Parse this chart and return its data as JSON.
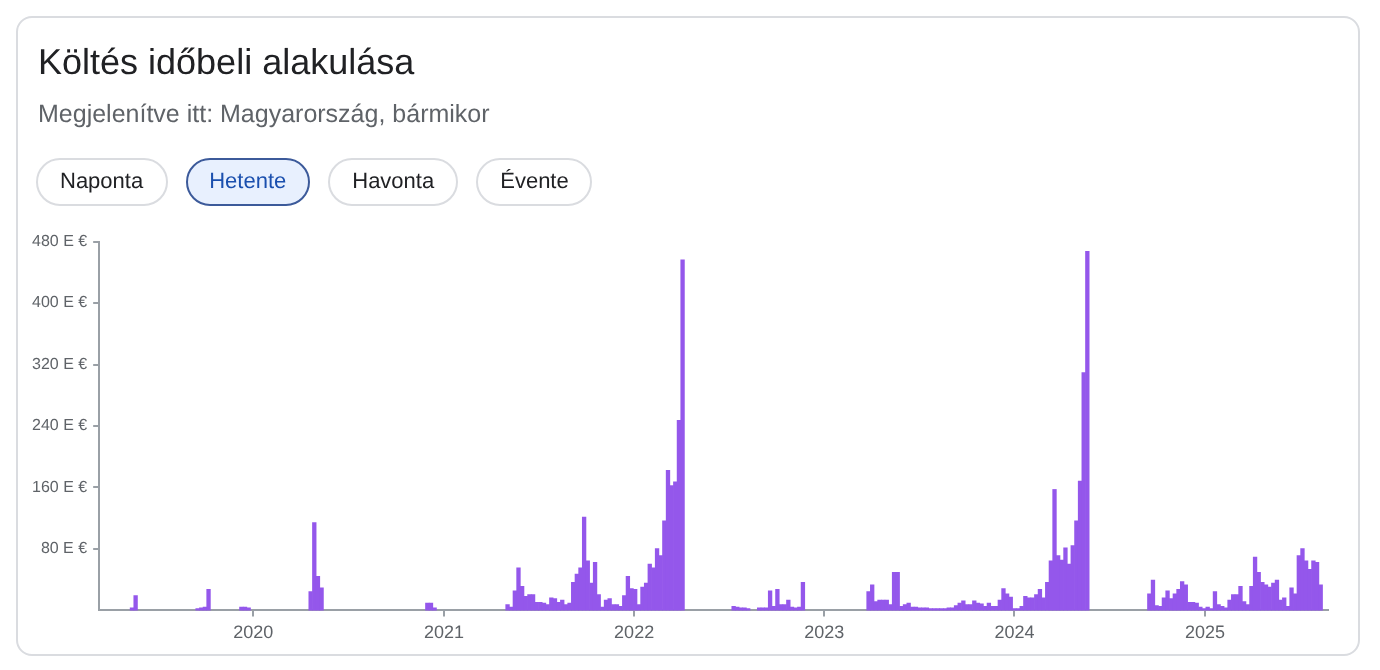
{
  "chart_data": {
    "type": "bar",
    "title": "Költés időbeli alakulása",
    "subtitle": "Megjelenítve itt: Magyarország, bármikor",
    "annotations": [
      "Naponta",
      "Hetente",
      "Havonta",
      "Évente"
    ],
    "color": "#9457eb",
    "x": [
      "2019-05-13",
      "2019-05-20",
      "2019-09-16",
      "2019-09-23",
      "2019-09-30",
      "2019-10-07",
      "2019-12-09",
      "2019-12-16",
      "2019-12-23",
      "2020-04-20",
      "2020-04-27",
      "2020-05-04",
      "2020-05-11",
      "2020-11-30",
      "2020-12-07",
      "2020-12-14",
      "2021-05-03",
      "2021-05-10",
      "2021-05-17",
      "2021-05-24",
      "2021-05-31",
      "2021-06-07",
      "2021-06-14",
      "2021-06-21",
      "2021-06-28",
      "2021-07-05",
      "2021-07-12",
      "2021-07-19",
      "2021-07-26",
      "2021-08-02",
      "2021-08-09",
      "2021-08-16",
      "2021-08-23",
      "2021-08-30",
      "2021-09-06",
      "2021-09-13",
      "2021-09-20",
      "2021-09-27",
      "2021-10-04",
      "2021-10-11",
      "2021-10-18",
      "2021-10-25",
      "2021-11-01",
      "2021-11-08",
      "2021-11-15",
      "2021-11-22",
      "2021-11-29",
      "2021-12-06",
      "2021-12-13",
      "2021-12-20",
      "2021-12-27",
      "2022-01-03",
      "2022-01-10",
      "2022-01-17",
      "2022-01-24",
      "2022-01-31",
      "2022-02-07",
      "2022-02-14",
      "2022-02-21",
      "2022-02-28",
      "2022-03-07",
      "2022-03-14",
      "2022-03-21",
      "2022-03-28",
      "2022-04-04",
      "2022-07-11",
      "2022-07-18",
      "2022-07-25",
      "2022-08-01",
      "2022-08-08",
      "2022-08-29",
      "2022-09-05",
      "2022-09-12",
      "2022-09-19",
      "2022-09-26",
      "2022-10-03",
      "2022-10-10",
      "2022-10-17",
      "2022-10-24",
      "2022-10-31",
      "2022-11-07",
      "2022-11-14",
      "2022-11-21",
      "2023-03-27",
      "2023-04-03",
      "2023-04-10",
      "2023-04-17",
      "2023-04-24",
      "2023-05-01",
      "2023-05-08",
      "2023-05-15",
      "2023-05-22",
      "2023-05-29",
      "2023-06-05",
      "2023-06-12",
      "2023-06-19",
      "2023-06-26",
      "2023-07-03",
      "2023-07-10",
      "2023-07-17",
      "2023-07-24",
      "2023-07-31",
      "2023-08-07",
      "2023-08-14",
      "2023-08-21",
      "2023-08-28",
      "2023-09-04",
      "2023-09-11",
      "2023-09-18",
      "2023-09-25",
      "2023-10-02",
      "2023-10-09",
      "2023-10-16",
      "2023-10-23",
      "2023-10-30",
      "2023-11-06",
      "2023-11-13",
      "2023-11-20",
      "2023-11-27",
      "2023-12-04",
      "2023-12-11",
      "2023-12-18",
      "2023-12-25",
      "2024-01-01",
      "2024-01-08",
      "2024-01-15",
      "2024-01-22",
      "2024-01-29",
      "2024-02-05",
      "2024-02-12",
      "2024-02-19",
      "2024-02-26",
      "2024-03-04",
      "2024-03-11",
      "2024-03-18",
      "2024-03-25",
      "2024-04-01",
      "2024-04-08",
      "2024-04-15",
      "2024-04-22",
      "2024-04-29",
      "2024-05-06",
      "2024-05-13",
      "2024-05-20",
      "2024-09-16",
      "2024-09-23",
      "2024-09-30",
      "2024-10-07",
      "2024-10-14",
      "2024-10-21",
      "2024-10-28",
      "2024-11-04",
      "2024-11-11",
      "2024-11-18",
      "2024-11-25",
      "2024-12-02",
      "2024-12-09",
      "2024-12-16",
      "2024-12-23",
      "2024-12-30",
      "2025-01-06",
      "2025-01-13",
      "2025-01-20",
      "2025-01-27",
      "2025-02-03",
      "2025-02-10",
      "2025-02-17",
      "2025-02-24",
      "2025-03-03",
      "2025-03-10",
      "2025-03-17",
      "2025-03-24",
      "2025-03-31",
      "2025-04-07",
      "2025-04-14",
      "2025-04-21",
      "2025-04-28",
      "2025-05-05",
      "2025-05-12",
      "2025-05-19",
      "2025-05-26",
      "2025-06-02",
      "2025-06-09",
      "2025-06-16",
      "2025-06-23",
      "2025-06-30",
      "2025-07-07",
      "2025-07-14",
      "2025-07-21",
      "2025-07-28",
      "2025-08-04",
      "2025-08-11"
    ],
    "values": [
      3,
      19,
      2,
      3,
      4,
      27,
      4,
      4,
      3,
      24,
      114,
      44,
      29,
      9,
      9,
      3,
      7,
      4,
      25,
      55,
      31,
      18,
      20,
      20,
      10,
      10,
      9,
      7,
      16,
      15,
      10,
      13,
      7,
      9,
      36,
      47,
      55,
      121,
      64,
      35,
      62,
      20,
      4,
      13,
      15,
      7,
      7,
      5,
      19,
      44,
      28,
      27,
      7,
      30,
      35,
      60,
      55,
      80,
      71,
      116,
      182,
      162,
      167,
      247,
      456,
      5,
      4,
      3,
      3,
      2,
      3,
      3,
      3,
      25,
      5,
      27,
      7,
      7,
      13,
      4,
      3,
      4,
      36,
      24,
      33,
      11,
      13,
      13,
      13,
      7,
      49,
      49,
      5,
      7,
      9,
      4,
      4,
      3,
      3,
      3,
      2,
      2,
      2,
      2,
      2,
      3,
      3,
      6,
      9,
      12,
      7,
      7,
      12,
      9,
      8,
      5,
      9,
      5,
      5,
      13,
      28,
      21,
      17,
      2,
      2,
      5,
      18,
      16,
      16,
      20,
      27,
      16,
      36,
      64,
      157,
      71,
      65,
      81,
      60,
      84,
      116,
      168,
      309,
      467,
      21,
      39,
      6,
      5,
      16,
      25,
      15,
      21,
      27,
      37,
      33,
      10,
      10,
      9,
      4,
      2,
      4,
      2,
      24,
      7,
      5,
      3,
      13,
      20,
      20,
      31,
      11,
      7,
      31,
      69,
      49,
      36,
      33,
      30,
      35,
      39,
      13,
      16,
      5,
      29,
      21,
      71,
      80,
      64,
      53,
      64,
      62,
      33
    ],
    "xlim": [
      "2019-03-11",
      "2025-08-25"
    ],
    "xticks": [
      {
        "value": "2020-01-01",
        "label": "2020"
      },
      {
        "value": "2021-01-01",
        "label": "2021"
      },
      {
        "value": "2022-01-01",
        "label": "2022"
      },
      {
        "value": "2023-01-01",
        "label": "2023"
      },
      {
        "value": "2024-01-01",
        "label": "2024"
      },
      {
        "value": "2025-01-01",
        "label": "2025"
      }
    ],
    "ylim": [
      0,
      480
    ],
    "yticks": [
      {
        "value": 80,
        "label": "80 E €"
      },
      {
        "value": 160,
        "label": "160 E €"
      },
      {
        "value": 240,
        "label": "240 E €"
      },
      {
        "value": 320,
        "label": "320 E €"
      },
      {
        "value": 400,
        "label": "400 E €"
      },
      {
        "value": 480,
        "label": "480 E €"
      }
    ]
  }
}
